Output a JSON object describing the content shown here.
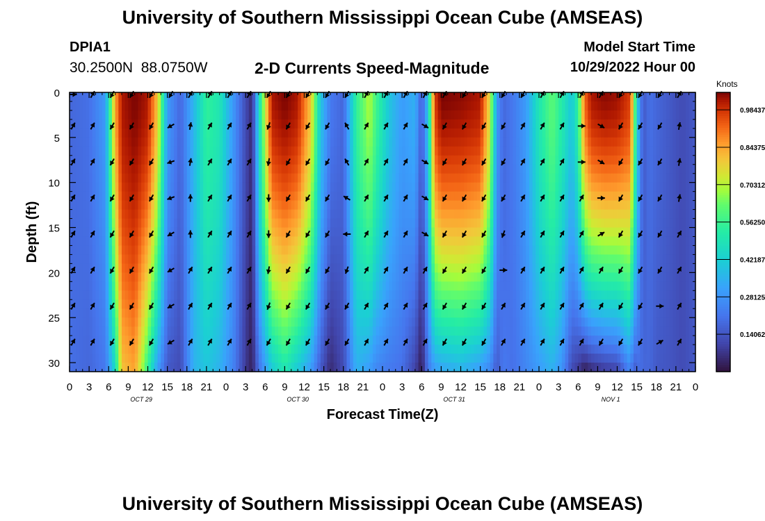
{
  "page": {
    "title": "University of Southern Mississippi Ocean Cube (AMSEAS)",
    "station_id": "DPIA1",
    "station_coords": "30.2500N  88.0750W",
    "plot_title": "2-D Currents Speed-Magnitude",
    "model_start_label": "Model Start Time",
    "model_start_value": "10/29/2022 Hour 00",
    "footer_title": "University of Southern Mississippi Ocean Cube (AMSEAS)"
  },
  "chart_data": {
    "type": "heatmap",
    "title": "2-D Currents Speed-Magnitude",
    "xlabel": "Forecast Time(Z)",
    "ylabel": "Depth (ft)",
    "x_hours_range": [
      0,
      96
    ],
    "ylim": [
      0,
      31
    ],
    "x_ticks": [
      {
        "hour": 0,
        "label": "0"
      },
      {
        "hour": 3,
        "label": "3"
      },
      {
        "hour": 6,
        "label": "6"
      },
      {
        "hour": 9,
        "label": "9"
      },
      {
        "hour": 12,
        "label": "12"
      },
      {
        "hour": 15,
        "label": "15"
      },
      {
        "hour": 18,
        "label": "18"
      },
      {
        "hour": 21,
        "label": "21"
      },
      {
        "hour": 24,
        "label": "0"
      },
      {
        "hour": 27,
        "label": "3"
      },
      {
        "hour": 30,
        "label": "6"
      },
      {
        "hour": 33,
        "label": "9"
      },
      {
        "hour": 36,
        "label": "12"
      },
      {
        "hour": 39,
        "label": "15"
      },
      {
        "hour": 42,
        "label": "18"
      },
      {
        "hour": 45,
        "label": "21"
      },
      {
        "hour": 48,
        "label": "0"
      },
      {
        "hour": 51,
        "label": "3"
      },
      {
        "hour": 54,
        "label": "6"
      },
      {
        "hour": 57,
        "label": "9"
      },
      {
        "hour": 60,
        "label": "12"
      },
      {
        "hour": 63,
        "label": "15"
      },
      {
        "hour": 66,
        "label": "18"
      },
      {
        "hour": 69,
        "label": "21"
      },
      {
        "hour": 72,
        "label": "0"
      },
      {
        "hour": 75,
        "label": "3"
      },
      {
        "hour": 78,
        "label": "6"
      },
      {
        "hour": 81,
        "label": "9"
      },
      {
        "hour": 84,
        "label": "12"
      },
      {
        "hour": 87,
        "label": "15"
      },
      {
        "hour": 90,
        "label": "18"
      },
      {
        "hour": 93,
        "label": "21"
      },
      {
        "hour": 96,
        "label": "0"
      }
    ],
    "date_labels": [
      {
        "hour": 11,
        "label": "OCT 29"
      },
      {
        "hour": 35,
        "label": "OCT 30"
      },
      {
        "hour": 59,
        "label": "OCT 31"
      },
      {
        "hour": 83,
        "label": "NOV 1"
      }
    ],
    "y_ticks": [
      0,
      5,
      10,
      15,
      20,
      25,
      30
    ],
    "colorbar": {
      "unit": "Knots",
      "range": [
        0.0,
        1.05
      ],
      "tick_values": [
        0.14062,
        0.28125,
        0.42187,
        0.5625,
        0.70312,
        0.84375,
        0.98437
      ],
      "tick_labels": [
        "0.14062",
        "0.28125",
        "0.42187",
        "0.56250",
        "0.70312",
        "0.84375",
        "0.98437"
      ]
    },
    "speed_profile": {
      "hours": [
        0,
        3,
        5.5,
        7,
        8,
        10,
        12,
        13.5,
        15,
        17,
        19,
        21,
        23,
        25,
        27,
        28,
        29,
        31,
        33,
        35,
        37,
        38.5,
        40,
        42,
        44,
        46,
        47,
        49,
        51,
        53,
        54,
        55,
        56,
        57,
        60,
        63,
        64.5,
        65.5,
        66.5,
        68,
        70,
        72,
        74,
        75.5,
        77,
        78,
        79,
        80,
        82,
        84,
        86,
        86.5,
        87.5,
        88,
        89,
        90,
        92,
        94,
        96
      ],
      "surface": [
        0.18,
        0.2,
        0.3,
        0.85,
        1.02,
        1.05,
        1.02,
        0.8,
        0.3,
        0.18,
        0.36,
        0.55,
        0.5,
        0.3,
        0.12,
        0.05,
        0.45,
        1.02,
        1.05,
        1.02,
        0.8,
        0.4,
        0.22,
        0.18,
        0.55,
        0.7,
        0.58,
        0.4,
        0.3,
        0.35,
        0.15,
        0.4,
        0.97,
        1.05,
        1.04,
        1.02,
        0.75,
        0.3,
        0.18,
        0.22,
        0.3,
        0.5,
        0.62,
        0.52,
        0.4,
        0.55,
        0.92,
        1.02,
        1.04,
        1.03,
        0.97,
        0.7,
        0.25,
        0.15,
        0.2,
        0.18,
        0.15,
        0.12,
        0.15
      ],
      "bottom": [
        0.2,
        0.18,
        0.22,
        0.45,
        0.8,
        0.85,
        0.55,
        0.3,
        0.15,
        0.12,
        0.35,
        0.4,
        0.35,
        0.25,
        0.08,
        0.03,
        0.2,
        0.4,
        0.5,
        0.4,
        0.3,
        0.15,
        0.05,
        0.12,
        0.35,
        0.3,
        0.25,
        0.22,
        0.2,
        0.1,
        0.02,
        0.22,
        0.3,
        0.32,
        0.35,
        0.3,
        0.25,
        0.15,
        0.22,
        0.2,
        0.25,
        0.3,
        0.35,
        0.28,
        0.12,
        0.08,
        0.02,
        0.05,
        0.08,
        0.1,
        0.25,
        0.15,
        0.2,
        0.18,
        0.18,
        0.15,
        0.14,
        0.12,
        0.15
      ]
    },
    "vectors": {
      "hours": [
        0,
        3,
        6,
        9,
        12,
        15,
        18,
        21,
        24,
        27,
        30,
        33,
        36,
        39,
        42,
        45,
        48,
        51,
        54,
        57,
        60,
        63,
        66,
        69,
        72,
        75,
        78,
        81,
        84,
        87,
        90,
        93
      ],
      "depths": [
        0,
        3.5,
        7.5,
        11.5,
        15.5,
        19.5,
        23.5,
        27.5
      ],
      "directions_deg": [
        [
          90,
          30,
          210,
          210,
          210,
          210,
          30,
          30,
          30,
          30,
          210,
          210,
          210,
          210,
          210,
          30,
          30,
          30,
          30,
          30,
          210,
          210,
          210,
          210,
          30,
          30,
          30,
          30,
          210,
          210,
          210,
          30
        ],
        [
          30,
          30,
          210,
          210,
          210,
          240,
          10,
          30,
          30,
          30,
          200,
          210,
          210,
          210,
          330,
          30,
          30,
          30,
          120,
          210,
          210,
          210,
          210,
          30,
          30,
          30,
          90,
          120,
          210,
          210,
          210,
          10
        ],
        [
          30,
          30,
          210,
          210,
          210,
          250,
          10,
          30,
          30,
          30,
          190,
          210,
          210,
          210,
          330,
          30,
          30,
          30,
          120,
          210,
          210,
          210,
          210,
          30,
          30,
          30,
          90,
          120,
          210,
          210,
          210,
          10
        ],
        [
          30,
          30,
          210,
          210,
          210,
          250,
          0,
          30,
          30,
          30,
          180,
          210,
          210,
          210,
          300,
          30,
          30,
          30,
          120,
          210,
          210,
          210,
          210,
          30,
          30,
          30,
          30,
          90,
          210,
          210,
          210,
          10
        ],
        [
          30,
          30,
          210,
          210,
          210,
          240,
          0,
          30,
          30,
          30,
          180,
          210,
          210,
          210,
          270,
          30,
          30,
          30,
          120,
          210,
          210,
          210,
          200,
          30,
          30,
          30,
          30,
          60,
          210,
          210,
          210,
          30
        ],
        [
          30,
          30,
          210,
          210,
          210,
          240,
          30,
          30,
          30,
          30,
          190,
          210,
          210,
          210,
          200,
          30,
          30,
          30,
          30,
          210,
          210,
          210,
          90,
          30,
          30,
          30,
          30,
          30,
          210,
          210,
          210,
          30
        ],
        [
          30,
          30,
          210,
          210,
          210,
          240,
          30,
          30,
          30,
          30,
          200,
          210,
          210,
          210,
          210,
          30,
          30,
          30,
          30,
          210,
          210,
          210,
          30,
          30,
          30,
          30,
          30,
          30,
          210,
          210,
          90,
          30
        ],
        [
          30,
          30,
          210,
          210,
          210,
          240,
          30,
          30,
          30,
          30,
          210,
          210,
          210,
          210,
          210,
          30,
          30,
          30,
          30,
          210,
          210,
          210,
          30,
          30,
          30,
          30,
          30,
          210,
          210,
          210,
          60,
          30
        ]
      ]
    }
  }
}
